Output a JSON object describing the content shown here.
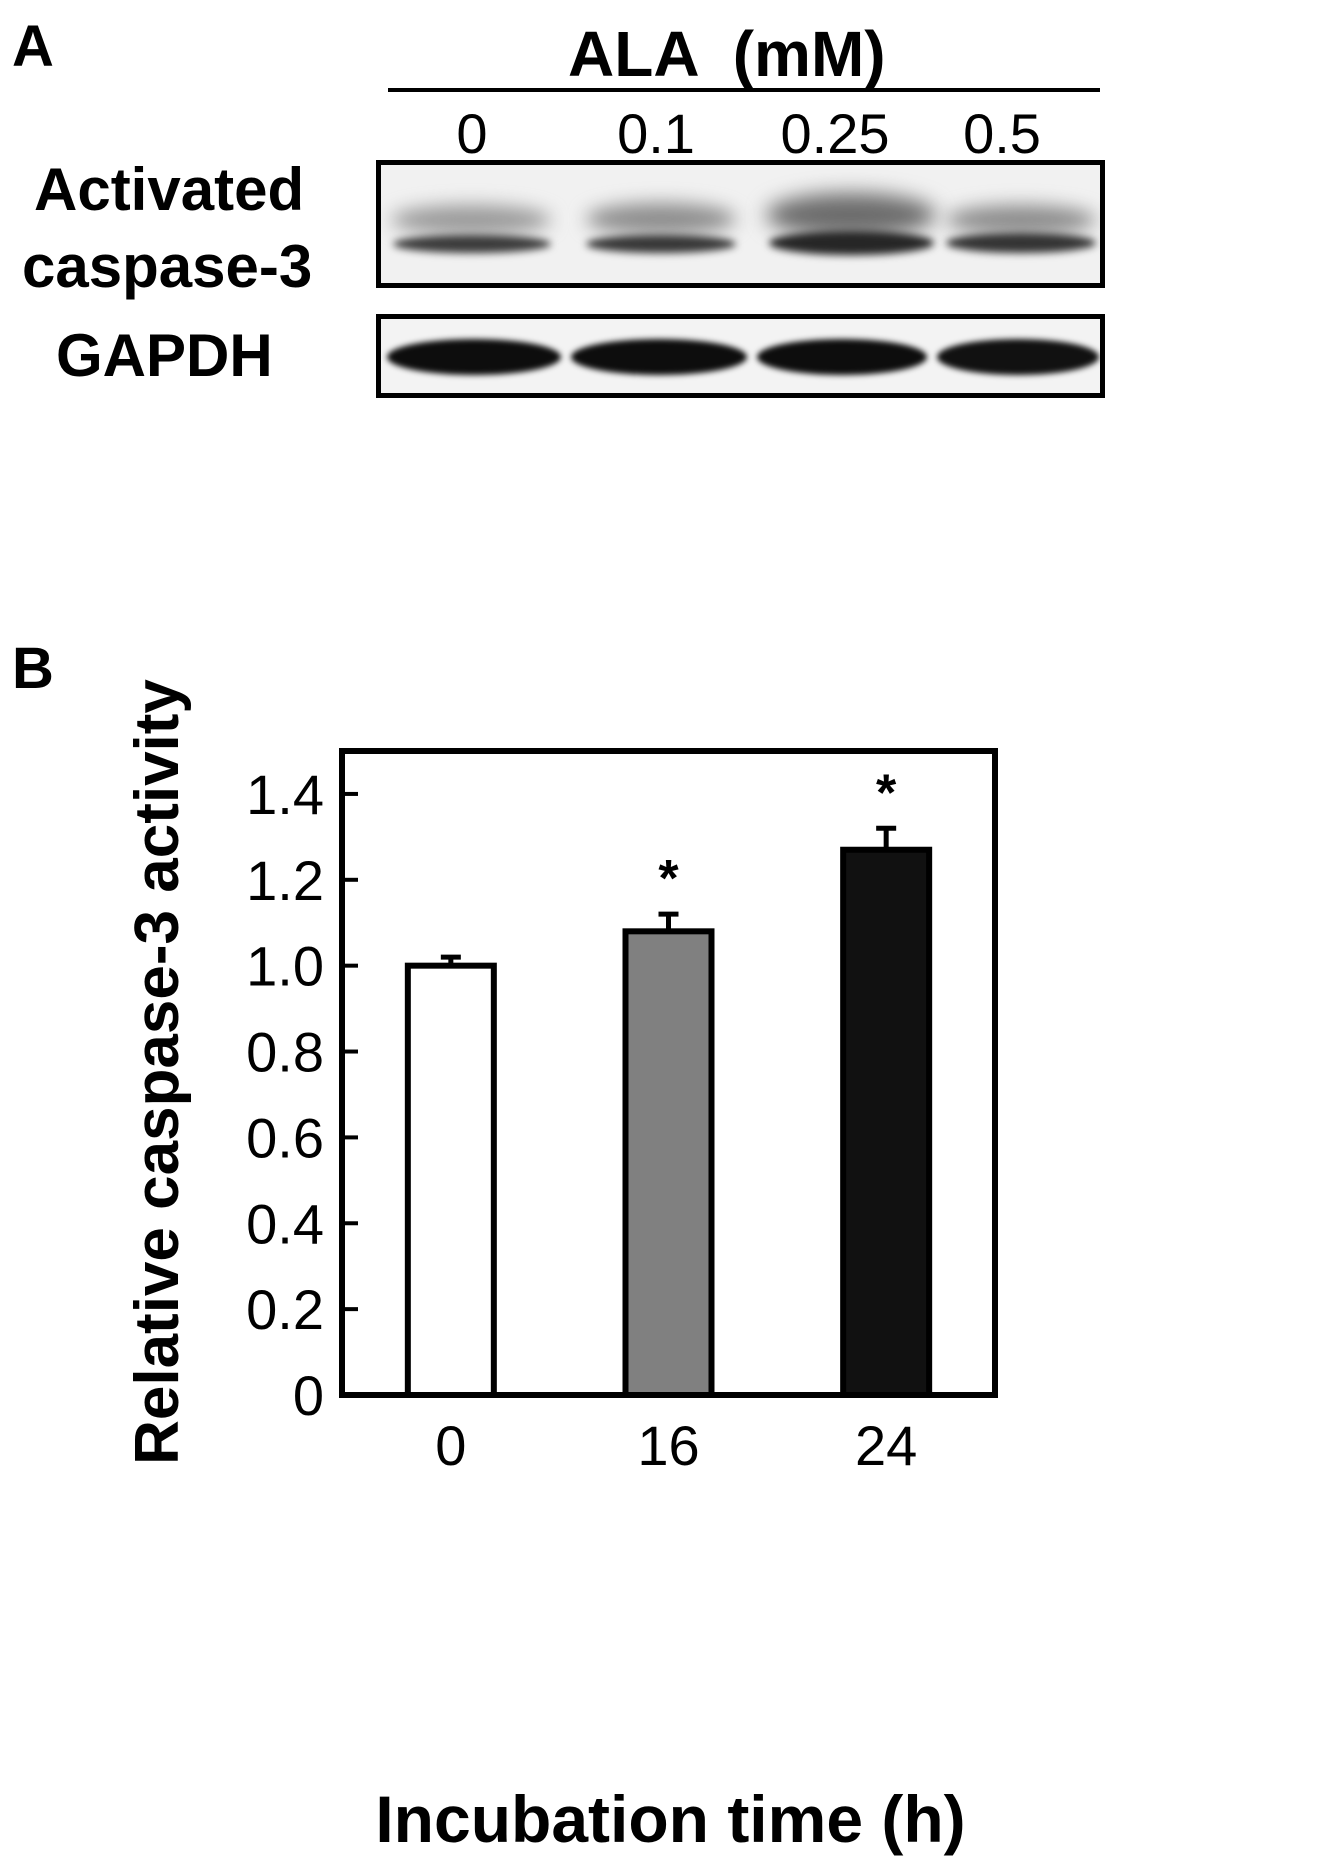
{
  "panel_a": {
    "letter": "A",
    "header": "ALA  (mM)",
    "lanes": [
      "0",
      "0.1",
      "0.25",
      "0.5"
    ],
    "blot_rows": [
      {
        "label_line1": "Activated",
        "label_line2": "caspase-3"
      },
      {
        "label_line1": "GAPDH",
        "label_line2": ""
      }
    ]
  },
  "panel_b": {
    "letter": "B"
  },
  "chart_data": {
    "type": "bar",
    "categories": [
      "0",
      "16",
      "24"
    ],
    "values": [
      1.0,
      1.08,
      1.27
    ],
    "errors": [
      0.02,
      0.04,
      0.05
    ],
    "significance": [
      "",
      "*",
      "*"
    ],
    "bar_colors": [
      "#ffffff",
      "#808080",
      "#111111"
    ],
    "xlabel": "Incubation time (h)",
    "ylabel": "Relative caspase-3 activity",
    "ylim": [
      0,
      1.5
    ],
    "yticks": [
      0,
      0.2,
      0.4,
      0.6,
      0.8,
      1.0,
      1.2,
      1.4
    ],
    "ytick_labels": [
      "0",
      "0.2",
      "0.4",
      "0.6",
      "0.8",
      "1.0",
      "1.2",
      "1.4"
    ],
    "grid": false,
    "legend": "none"
  }
}
